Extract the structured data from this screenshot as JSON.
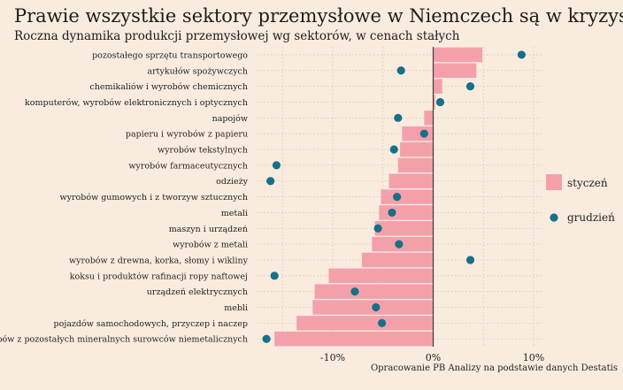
{
  "chart_data": {
    "type": "bar",
    "title": "Prawie wszystkie sektory przemysłowe w Niemczech są w kryzysie",
    "subtitle": "Roczna dynamika produkcji przemysłowej wg sektorów, w cenach stałych",
    "source": "Opracowanie PB Analizy na podstawie danych Destatis",
    "orientation": "horizontal",
    "xlim": [
      -16.5,
      11
    ],
    "x_ticks": [
      -10,
      0,
      10
    ],
    "x_tick_labels": [
      "-10%",
      "0%",
      "10%"
    ],
    "grid": true,
    "legend_position": "right",
    "categories": [
      "pozostałego sprzętu transportowego",
      "artykułów spożywczych",
      "chemikaliów i wyrobów chemicznych",
      "komputerów, wyrobów elektronicznych i optycznych",
      "napojów",
      "papieru i wyrobów z papieru",
      "wyrobów tekstylnych",
      "wyrobów farmaceutycznych",
      "odzieży",
      "wyrobów gumowych i z tworzyw sztucznych",
      "metali",
      "maszyn i urządzeń",
      "wyrobów z metali",
      "wyrobów z drewna, korka, słomy i wikliny",
      "koksu i produktów rafinacji ropy naftowej",
      "urządzeń elektrycznych",
      "mebli",
      "pojazdów samochodowych, przyczep i naczep",
      "wyrobów z pozostałych mineralnych surowców niemetalicznych"
    ],
    "series": [
      {
        "name": "styczeń",
        "kind": "bar",
        "color": "#f4a0ab",
        "values": [
          4.9,
          4.3,
          0.9,
          0.2,
          -0.9,
          -3.1,
          -3.3,
          -3.5,
          -4.4,
          -5.2,
          -5.4,
          -5.8,
          -6.1,
          -7.1,
          -10.4,
          -11.8,
          -12.0,
          -13.6,
          -15.8
        ]
      },
      {
        "name": "grudzień",
        "kind": "point",
        "color": "#186f8a",
        "values": [
          8.8,
          -3.2,
          3.7,
          0.7,
          -3.5,
          -0.9,
          -3.9,
          -15.6,
          -16.2,
          -3.6,
          -4.1,
          -5.5,
          -3.4,
          3.7,
          -15.8,
          -7.8,
          -5.7,
          -5.1,
          -16.6
        ]
      }
    ]
  }
}
